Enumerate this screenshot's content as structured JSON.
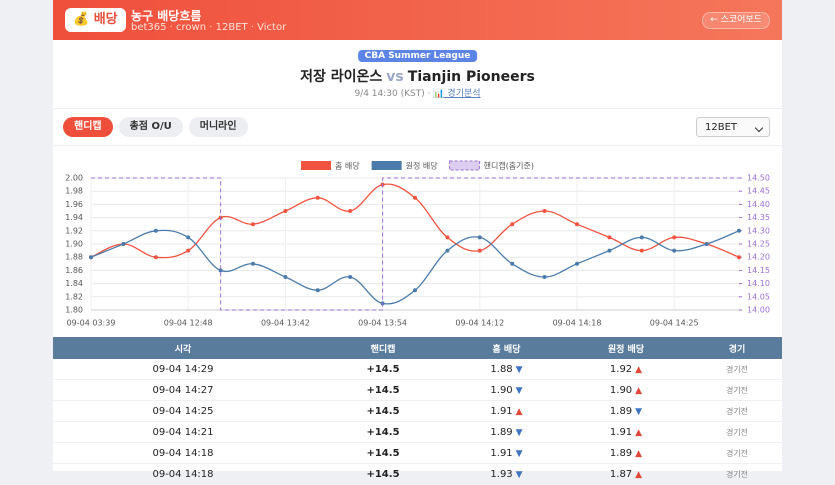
{
  "header": {
    "badge": "💰 배당",
    "title": "농구 배당흐름",
    "subtitle": "bet365 · crown · 12BET · Victor",
    "back": "← 스코어보드"
  },
  "match": {
    "league": "CBA Summer League",
    "home": "저장 라이온스",
    "vs": "vs",
    "away": "Tianjin Pioneers",
    "time": "9/4 14:30 (KST)",
    "separator": "·",
    "analysis": "📊 경기분석"
  },
  "tabs": [
    "핸디캡",
    "총점 O/U",
    "머니라인"
  ],
  "active_tab": 0,
  "bookmaker": "12BET",
  "chart_data": {
    "type": "line",
    "categories": [
      "09-04 03:39",
      null,
      null,
      "09-04 12:48",
      null,
      null,
      "09-04 13:42",
      null,
      null,
      "09-04 13:54",
      null,
      null,
      "09-04 14:12",
      null,
      null,
      "09-04 14:18",
      null,
      null,
      "09-04 14:25",
      null,
      null
    ],
    "series": [
      {
        "name": "홈 배당",
        "color": "#f0533f",
        "values": [
          1.88,
          1.9,
          1.88,
          1.89,
          1.94,
          1.93,
          1.95,
          1.97,
          1.95,
          1.99,
          1.97,
          1.91,
          1.89,
          1.93,
          1.95,
          1.93,
          1.91,
          1.89,
          1.91,
          1.9,
          1.88
        ]
      },
      {
        "name": "원정 배당",
        "color": "#4a7bab",
        "values": [
          1.88,
          1.9,
          1.92,
          1.91,
          1.86,
          1.87,
          1.85,
          1.83,
          1.85,
          1.81,
          1.83,
          1.89,
          1.91,
          1.87,
          1.85,
          1.87,
          1.89,
          1.91,
          1.89,
          1.9,
          1.92
        ]
      },
      {
        "name": "핸디캡(홈기준)",
        "color": "#9b6fd6",
        "axis": "y2",
        "step": true,
        "dashed": true,
        "values": [
          14.5,
          14.5,
          14.5,
          14.5,
          14.0,
          14.0,
          14.0,
          14.0,
          14.0,
          14.5,
          14.5,
          14.5,
          14.5,
          14.5,
          14.5,
          14.5,
          14.5,
          14.5,
          14.5,
          14.5,
          14.5
        ]
      }
    ],
    "ylim": [
      1.8,
      2.0
    ],
    "yticks": [
      {
        "value": 1.8,
        "label": "1.80"
      },
      1.82,
      1.84,
      1.86,
      1.88,
      {
        "value": 1.9,
        "label": "1.90"
      },
      1.92,
      1.94,
      1.96,
      1.98,
      {
        "value": 2.0,
        "label": "2.00"
      }
    ],
    "y2lim": [
      14.0,
      14.5
    ],
    "y2ticks": [
      {
        "value": 14.0,
        "label": "14.00"
      },
      14.05,
      {
        "value": 14.1,
        "label": "14.10"
      },
      14.15,
      {
        "value": 14.2,
        "label": "14.20"
      },
      14.25,
      {
        "value": 14.3,
        "label": "14.30"
      },
      14.35,
      {
        "value": 14.4,
        "label": "14.40"
      },
      14.45,
      {
        "value": 14.5,
        "label": "14.50"
      }
    ],
    "grid": true,
    "legend": "top"
  },
  "table": {
    "columns": [
      "시각",
      "핸디캡",
      "홈 배당",
      "원정 배당",
      "경기"
    ],
    "rows": [
      [
        "09-04 14:29",
        "+14.5",
        "1.88",
        "▼",
        "1.92",
        "▲",
        "경기전"
      ],
      [
        "09-04 14:27",
        "+14.5",
        "1.90",
        "▼",
        "1.90",
        "▲",
        "경기전"
      ],
      [
        "09-04 14:25",
        "+14.5",
        "1.91",
        "▲",
        "1.89",
        "▼",
        "경기전"
      ],
      [
        "09-04 14:21",
        "+14.5",
        "1.89",
        "▼",
        "1.91",
        "▲",
        "경기전"
      ],
      [
        "09-04 14:18",
        "+14.5",
        "1.91",
        "▼",
        "1.89",
        "▲",
        "경기전"
      ],
      [
        "09-04 14:18",
        "+14.5",
        "1.93",
        "▼",
        "1.87",
        "▲",
        "경기전"
      ]
    ]
  },
  "arrow_colors": {
    "▲": "#e0483a",
    "▼": "#3f74c2"
  }
}
